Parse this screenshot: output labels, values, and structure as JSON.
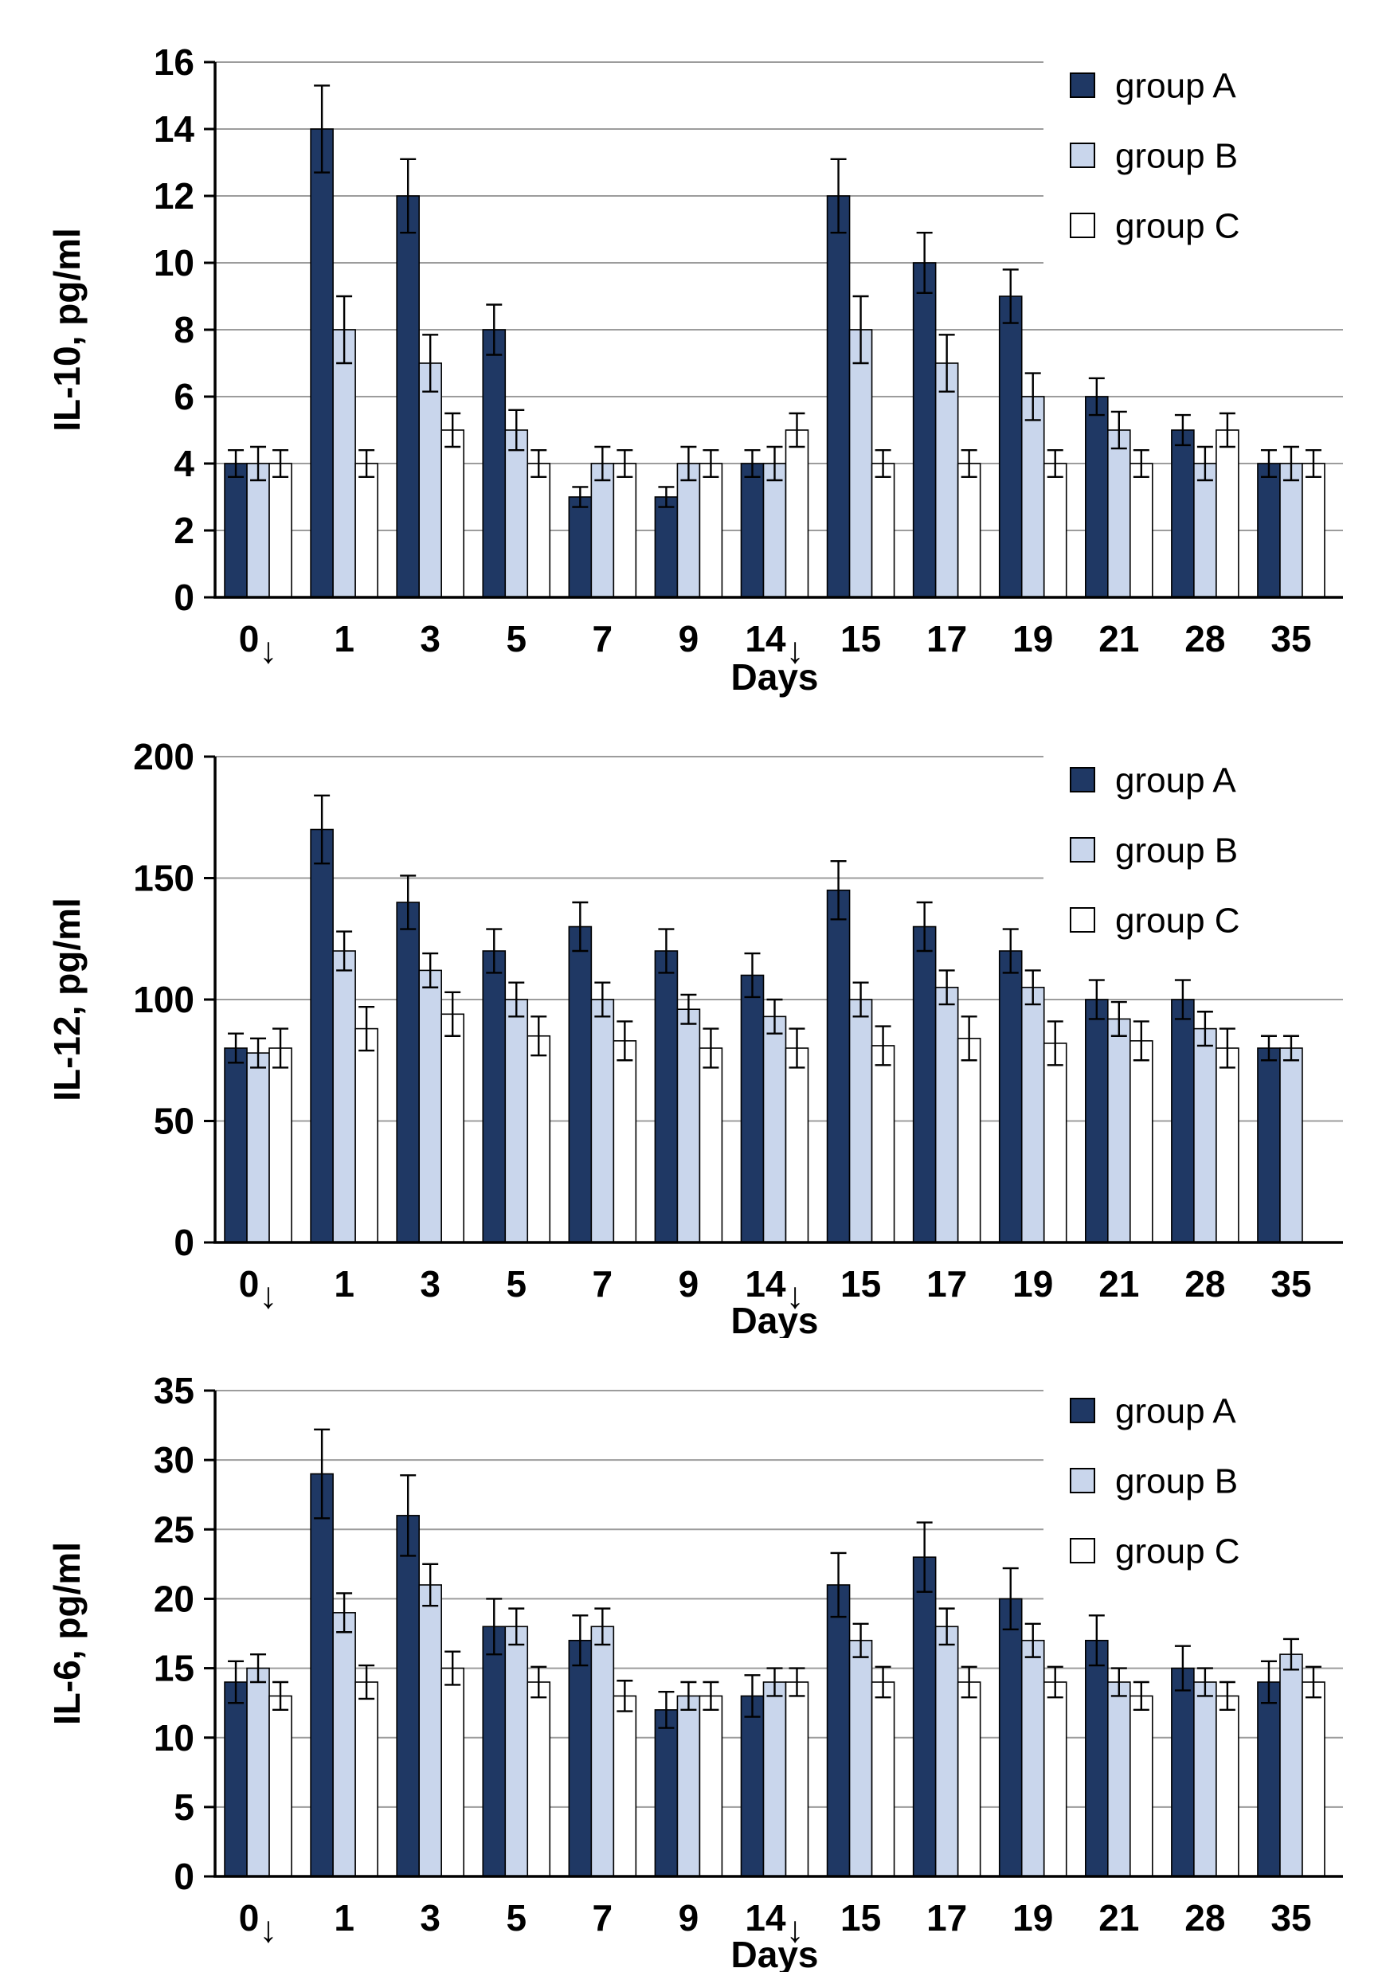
{
  "page": {
    "background": "#ffffff"
  },
  "colors": {
    "group_a_fill": "#1F3864",
    "group_b_fill": "#C9D6EC",
    "group_c_fill": "#FFFFFF",
    "bar_stroke": "#000000",
    "error_bar": "#000000",
    "gridline": "#9C9C9C",
    "axis": "#000000",
    "legend_bg": "#FFFFFF"
  },
  "legend": {
    "items": [
      {
        "label": "group A"
      },
      {
        "label": "group B"
      },
      {
        "label": "group C"
      }
    ]
  },
  "chart_data": [
    {
      "id": "il10",
      "type": "bar",
      "title": "",
      "ylabel": "IL-10, pg/ml",
      "xlabel": "Days",
      "ylim": [
        0,
        16
      ],
      "ystep": 2,
      "yticks": [
        "0",
        "2",
        "4",
        "6",
        "8",
        "10",
        "12",
        "14",
        "16"
      ],
      "grid": true,
      "legend_position": "top-right",
      "legend_entries": [
        "group A",
        "group B",
        "group C"
      ],
      "categories": [
        "0↓",
        "1",
        "3",
        "5",
        "7",
        "9",
        "14↓",
        "15",
        "17",
        "19",
        "21",
        "28",
        "35"
      ],
      "series": [
        {
          "name": "group A",
          "values": [
            4,
            14,
            12,
            8,
            3,
            3,
            4,
            12,
            10,
            9,
            6,
            5,
            4
          ],
          "errors": [
            0.4,
            1.3,
            1.1,
            0.75,
            0.3,
            0.3,
            0.4,
            1.1,
            0.9,
            0.8,
            0.55,
            0.45,
            0.4
          ]
        },
        {
          "name": "group B",
          "values": [
            4,
            8,
            7,
            5,
            4,
            4,
            4,
            8,
            7,
            6,
            5,
            4,
            4
          ],
          "errors": [
            0.5,
            1.0,
            0.85,
            0.6,
            0.5,
            0.5,
            0.5,
            1.0,
            0.85,
            0.7,
            0.55,
            0.5,
            0.5
          ]
        },
        {
          "name": "group C",
          "values": [
            4,
            4,
            5,
            4,
            4,
            4,
            5,
            4,
            4,
            4,
            4,
            5,
            4
          ],
          "errors": [
            0.4,
            0.4,
            0.5,
            0.4,
            0.4,
            0.4,
            0.5,
            0.4,
            0.4,
            0.4,
            0.4,
            0.5,
            0.4
          ]
        }
      ]
    },
    {
      "id": "il12",
      "type": "bar",
      "title": "",
      "ylabel": "IL-12, pg/ml",
      "xlabel": "Days",
      "ylim": [
        0,
        200
      ],
      "ystep": 50,
      "yticks": [
        "0",
        "50",
        "100",
        "150",
        "200"
      ],
      "grid": true,
      "legend_position": "top-right",
      "legend_entries": [
        "group A",
        "group B",
        "group C"
      ],
      "categories": [
        "0↓",
        "1",
        "3",
        "5",
        "7",
        "9",
        "14↓",
        "15",
        "17",
        "19",
        "21",
        "28",
        "35"
      ],
      "series": [
        {
          "name": "group A",
          "values": [
            80,
            170,
            140,
            120,
            130,
            120,
            110,
            145,
            130,
            120,
            100,
            100,
            80
          ],
          "errors": [
            6,
            14,
            11,
            9,
            10,
            9,
            9,
            12,
            10,
            9,
            8,
            8,
            5
          ]
        },
        {
          "name": "group B",
          "values": [
            78,
            120,
            112,
            100,
            100,
            96,
            93,
            100,
            105,
            105,
            92,
            88,
            80
          ],
          "errors": [
            6,
            8,
            7,
            7,
            7,
            6,
            7,
            7,
            7,
            7,
            7,
            7,
            5
          ]
        },
        {
          "name": "group C",
          "values": [
            80,
            88,
            94,
            85,
            83,
            80,
            80,
            81,
            84,
            82,
            83,
            80,
            null
          ],
          "errors": [
            8,
            9,
            9,
            8,
            8,
            8,
            8,
            8,
            9,
            9,
            8,
            8,
            null
          ]
        }
      ]
    },
    {
      "id": "il6",
      "type": "bar",
      "title": "",
      "ylabel": "IL-6, pg/ml",
      "xlabel": "Days",
      "ylim": [
        0,
        35
      ],
      "ystep": 5,
      "yticks": [
        "0",
        "5",
        "10",
        "15",
        "20",
        "25",
        "30",
        "35"
      ],
      "grid": true,
      "legend_position": "top-right",
      "legend_entries": [
        "group A",
        "group B",
        "group C"
      ],
      "categories": [
        "0↓",
        "1",
        "3",
        "5",
        "7",
        "9",
        "14↓",
        "15",
        "17",
        "19",
        "21",
        "28",
        "35"
      ],
      "series": [
        {
          "name": "group A",
          "values": [
            14,
            29,
            26,
            18,
            17,
            12,
            13,
            21,
            23,
            20,
            17,
            15,
            14
          ],
          "errors": [
            1.5,
            3.2,
            2.9,
            2.0,
            1.8,
            1.3,
            1.5,
            2.3,
            2.5,
            2.2,
            1.8,
            1.6,
            1.5
          ]
        },
        {
          "name": "group B",
          "values": [
            15,
            19,
            21,
            18,
            18,
            13,
            14,
            17,
            18,
            17,
            14,
            14,
            16
          ],
          "errors": [
            1.0,
            1.4,
            1.5,
            1.3,
            1.3,
            1.0,
            1.0,
            1.2,
            1.3,
            1.2,
            1.0,
            1.0,
            1.1
          ]
        },
        {
          "name": "group C",
          "values": [
            13,
            14,
            15,
            14,
            13,
            13,
            14,
            14,
            14,
            14,
            13,
            13,
            14
          ],
          "errors": [
            1.0,
            1.2,
            1.2,
            1.1,
            1.1,
            1.0,
            1.0,
            1.1,
            1.1,
            1.1,
            1.0,
            1.0,
            1.1
          ]
        }
      ]
    }
  ]
}
